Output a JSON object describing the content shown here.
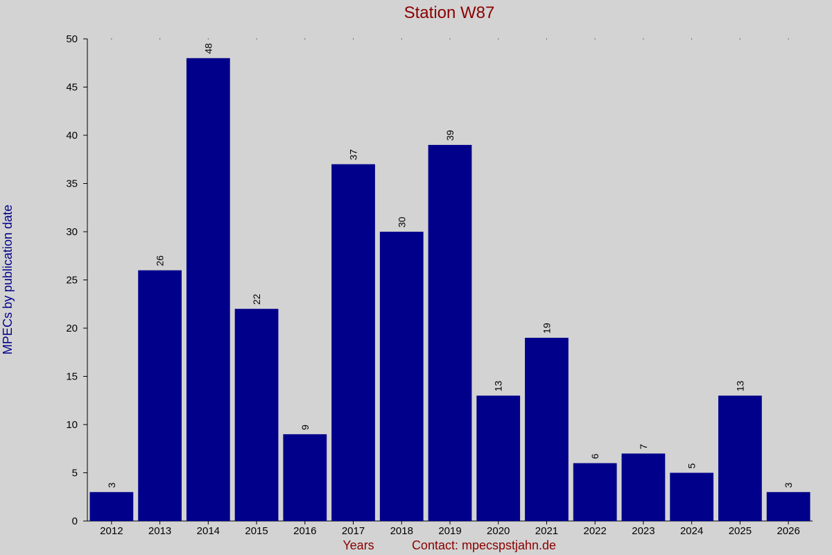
{
  "chart_data": {
    "type": "bar",
    "title": "Station W87",
    "ylabel": "MPECs by publication date",
    "xlabel": "Years",
    "footer": "Contact: mpecspstjahn.de",
    "categories": [
      "2012",
      "2013",
      "2014",
      "2015",
      "2016",
      "2017",
      "2018",
      "2019",
      "2020",
      "2021",
      "2022",
      "2023",
      "2024",
      "2025",
      "2026"
    ],
    "values": [
      3,
      26,
      48,
      22,
      9,
      37,
      30,
      39,
      13,
      19,
      6,
      7,
      5,
      13,
      3
    ],
    "ylim": [
      0,
      50
    ],
    "yticks": [
      0,
      5,
      10,
      15,
      20,
      25,
      30,
      35,
      40,
      45,
      50
    ],
    "data_labels": true,
    "grid": false,
    "colors": {
      "bar": "#00008b",
      "title": "#8b0000",
      "ylabel": "#00008b",
      "footer": "#8b0000",
      "background": "#d3d3d3"
    }
  }
}
